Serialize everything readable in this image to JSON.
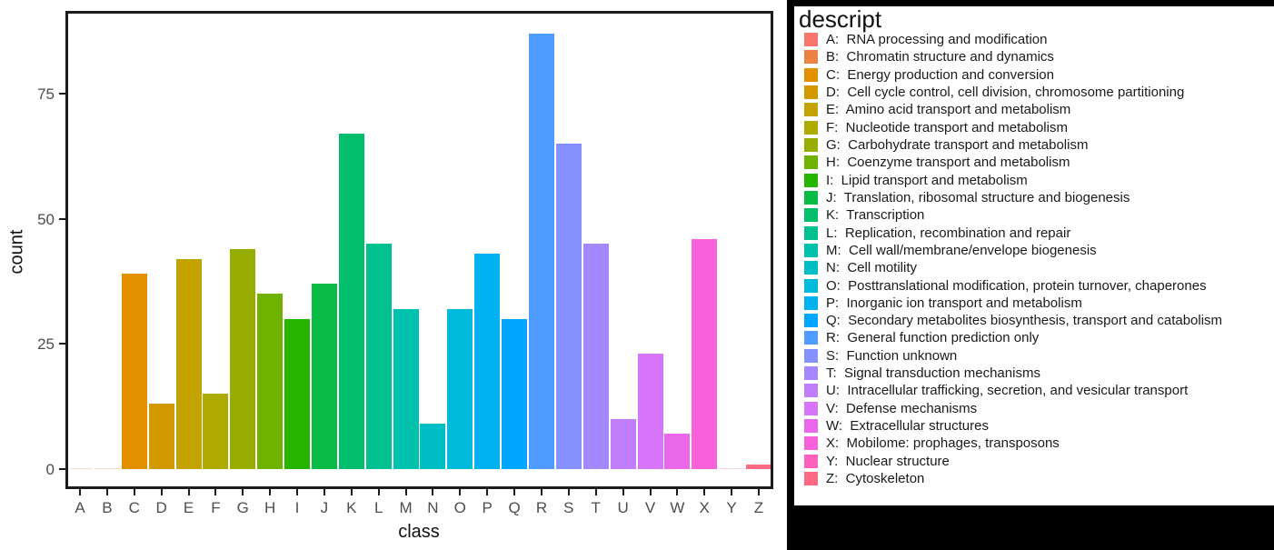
{
  "chart_data": {
    "type": "bar",
    "title": "",
    "xlabel": "class",
    "ylabel": "count",
    "yticks": [
      0,
      25,
      50,
      75
    ],
    "ylim": [
      0,
      91.5
    ],
    "grid": false,
    "legend_position": "right",
    "legend_title": "descript",
    "categories": [
      "A",
      "B",
      "C",
      "D",
      "E",
      "F",
      "G",
      "H",
      "I",
      "J",
      "K",
      "L",
      "M",
      "N",
      "O",
      "P",
      "Q",
      "R",
      "S",
      "T",
      "U",
      "V",
      "W",
      "X",
      "Y",
      "Z"
    ],
    "values": [
      0,
      0,
      39,
      13,
      42,
      15,
      44,
      35,
      30,
      37,
      67,
      45,
      32,
      9,
      32,
      43,
      30,
      87,
      65,
      45,
      10,
      23,
      7,
      46,
      0,
      1
    ],
    "colors": [
      "#F8766D",
      "#EA8343",
      "#E29000",
      "#D39A00",
      "#C2A300",
      "#AFAA00",
      "#97AE00",
      "#6FB200",
      "#27B600",
      "#0ABB45",
      "#00BE6C",
      "#00C090",
      "#00C1AB",
      "#00BFC4",
      "#00BBDA",
      "#00B2EF",
      "#00A6FF",
      "#4F9BFF",
      "#8591FF",
      "#A486FF",
      "#C07EFA",
      "#D874FA",
      "#EA67EC",
      "#F762DA",
      "#FE61BE",
      "#FC6A83"
    ]
  },
  "legend": {
    "title": "descript",
    "items": [
      {
        "label": "A:  RNA processing and modification",
        "color": "#F8766D"
      },
      {
        "label": "B:  Chromatin structure and dynamics",
        "color": "#EA8343"
      },
      {
        "label": "C:  Energy production and conversion",
        "color": "#E29000"
      },
      {
        "label": "D:  Cell cycle control, cell division, chromosome partitioning",
        "color": "#D39A00"
      },
      {
        "label": "E:  Amino acid transport and metabolism",
        "color": "#C2A300"
      },
      {
        "label": "F:  Nucleotide transport and metabolism",
        "color": "#AFAA00"
      },
      {
        "label": "G:  Carbohydrate transport and metabolism",
        "color": "#97AE00"
      },
      {
        "label": "H:  Coenzyme transport and metabolism",
        "color": "#6FB200"
      },
      {
        "label": "I:  Lipid transport and metabolism",
        "color": "#27B600"
      },
      {
        "label": "J:  Translation, ribosomal structure and biogenesis",
        "color": "#0ABB45"
      },
      {
        "label": "K:  Transcription",
        "color": "#00BE6C"
      },
      {
        "label": "L:  Replication, recombination and repair",
        "color": "#00C090"
      },
      {
        "label": "M:  Cell wall/membrane/envelope biogenesis",
        "color": "#00C1AB"
      },
      {
        "label": "N:  Cell motility",
        "color": "#00BFC4"
      },
      {
        "label": "O:  Posttranslational modification, protein turnover, chaperones",
        "color": "#00BBDA"
      },
      {
        "label": "P:  Inorganic ion transport and metabolism",
        "color": "#00B2EF"
      },
      {
        "label": "Q:  Secondary metabolites biosynthesis, transport and catabolism",
        "color": "#00A6FF"
      },
      {
        "label": "R:  General function prediction only",
        "color": "#4F9BFF"
      },
      {
        "label": "S:  Function unknown",
        "color": "#8591FF"
      },
      {
        "label": "T:  Signal transduction mechanisms",
        "color": "#A486FF"
      },
      {
        "label": "U:  Intracellular trafficking, secretion, and vesicular transport",
        "color": "#C07EFA"
      },
      {
        "label": "V:  Defense mechanisms",
        "color": "#D874FA"
      },
      {
        "label": "W:  Extracellular structures",
        "color": "#EA67EC"
      },
      {
        "label": "X:  Mobilome: prophages, transposons",
        "color": "#F762DA"
      },
      {
        "label": "Y:  Nuclear structure",
        "color": "#FE61BE"
      },
      {
        "label": "Z:  Cytoskeleton",
        "color": "#FC6A83"
      }
    ]
  }
}
